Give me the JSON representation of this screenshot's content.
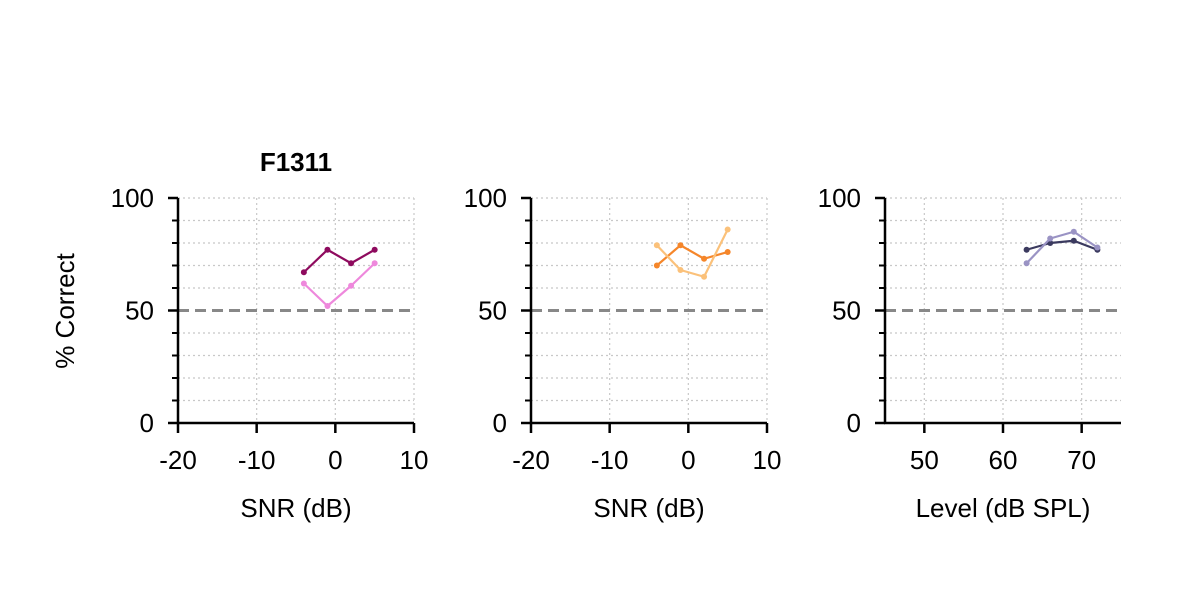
{
  "ylabel": "% Correct",
  "colors": {
    "axis": "#000000",
    "grid": "#c8c8c8",
    "chance": "#888888"
  },
  "chart_data": [
    {
      "type": "line",
      "title": "F1311",
      "xlabel": "SNR (dB)",
      "ylabel": "% Correct",
      "xlim": [
        -20,
        10
      ],
      "ylim": [
        0,
        100
      ],
      "xticks": [
        -20,
        -10,
        0,
        10
      ],
      "yticks": [
        0,
        50,
        100
      ],
      "chance_level": 50,
      "grid": true,
      "series": [
        {
          "color": "#8e0a5e",
          "x": [
            -4,
            -1,
            2,
            5
          ],
          "y": [
            67,
            77,
            71,
            77
          ]
        },
        {
          "color": "#ee88dc",
          "x": [
            -4,
            -1,
            2,
            5
          ],
          "y": [
            62,
            52,
            61,
            71
          ]
        }
      ]
    },
    {
      "type": "line",
      "title": "",
      "xlabel": "SNR (dB)",
      "ylabel": "",
      "xlim": [
        -20,
        10
      ],
      "ylim": [
        0,
        100
      ],
      "xticks": [
        -20,
        -10,
        0,
        10
      ],
      "yticks": [
        0,
        50,
        100
      ],
      "chance_level": 50,
      "grid": true,
      "series": [
        {
          "color": "#f5862a",
          "x": [
            -4,
            -1,
            2,
            5
          ],
          "y": [
            70,
            79,
            73,
            76
          ]
        },
        {
          "color": "#fbc17a",
          "x": [
            -4,
            -1,
            2,
            5
          ],
          "y": [
            79,
            68,
            65,
            86
          ]
        }
      ]
    },
    {
      "type": "line",
      "title": "",
      "xlabel": "Level (dB SPL)",
      "ylabel": "",
      "xlim": [
        45,
        75
      ],
      "ylim": [
        0,
        100
      ],
      "xticks": [
        50,
        60,
        70
      ],
      "yticks": [
        0,
        50,
        100
      ],
      "chance_level": 50,
      "grid": true,
      "series": [
        {
          "color": "#3b3a5f",
          "x": [
            63,
            66,
            69,
            72
          ],
          "y": [
            77,
            80,
            81,
            77
          ]
        },
        {
          "color": "#9a93c4",
          "x": [
            63,
            66,
            69,
            72
          ],
          "y": [
            71,
            82,
            85,
            78
          ]
        }
      ]
    }
  ]
}
